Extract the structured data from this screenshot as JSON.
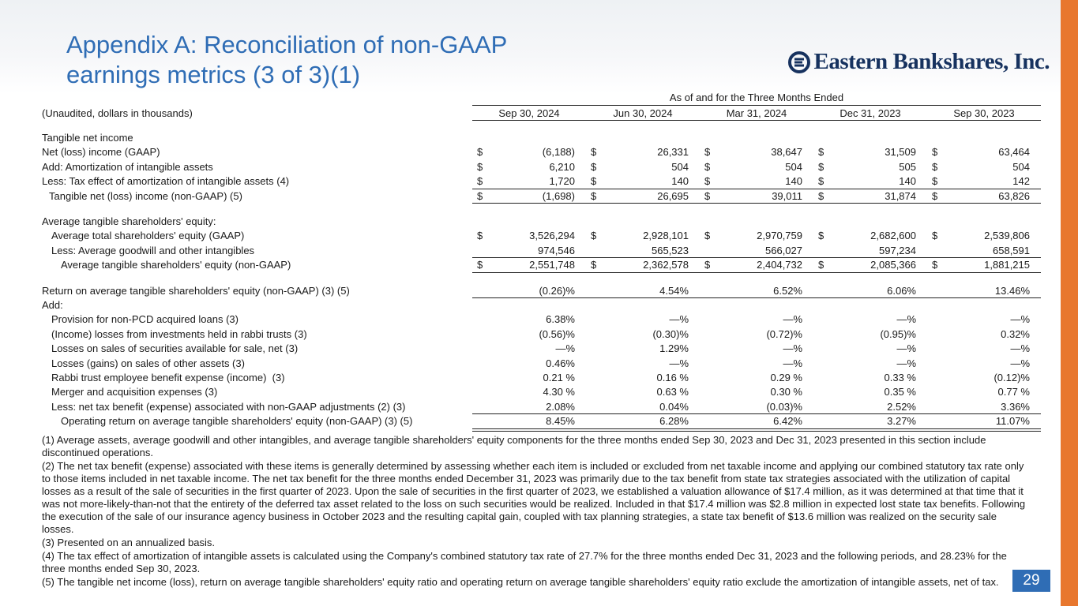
{
  "title": [
    "Appendix A: Reconciliation of non-GAAP",
    "earnings metrics (3 of 3)(1)"
  ],
  "logo": "Eastern Bankshares, Inc.",
  "table": {
    "group_header": "As of and for the Three Months Ended",
    "stub_header": "(Unaudited, dollars in thousands)",
    "currency": "$",
    "columns": [
      "Sep 30, 2024",
      "Jun 30, 2024",
      "Mar 31, 2024",
      "Dec 31, 2023",
      "Sep 30, 2023"
    ],
    "sections": [
      [
        {
          "label": "Tangible net income",
          "cells": []
        },
        {
          "label": "Net (loss) income (GAAP)",
          "dollar": true,
          "cells": [
            "(6,188)",
            "26,331",
            "38,647",
            "31,509",
            "63,464"
          ]
        },
        {
          "label": "Add: Amortization of intangible assets",
          "dollar": true,
          "cells": [
            "6,210",
            "504",
            "504",
            "505",
            "504"
          ]
        },
        {
          "label": "Less: Tax effect of amortization of intangible assets (4)",
          "dollar": true,
          "cells": [
            "1,720",
            "140",
            "140",
            "140",
            "142"
          ]
        },
        {
          "label": "Tangible net (loss) income (non-GAAP) (5)",
          "dollar": true,
          "cells": [
            "(1,698)",
            "26,695",
            "39,011",
            "31,874",
            "63,826"
          ]
        }
      ],
      [
        {
          "label": "Average tangible shareholders' equity:",
          "cells": []
        },
        {
          "label": "Average total shareholders' equity (GAAP)",
          "dollar": true,
          "cells": [
            "3,526,294",
            "2,928,101",
            "2,970,759",
            "2,682,600",
            "2,539,806"
          ]
        },
        {
          "label": "Less: Average goodwill and other intangibles",
          "cells": [
            "974,546",
            "565,523",
            "566,027",
            "597,234",
            "658,591"
          ]
        },
        {
          "label": "Average tangible shareholders' equity (non-GAAP)",
          "dollar": true,
          "cells": [
            "2,551,748",
            "2,362,578",
            "2,404,732",
            "2,085,366",
            "1,881,215"
          ]
        }
      ],
      [
        {
          "label": "Return on average tangible shareholders' equity (non-GAAP) (3) (5)",
          "cells": [
            "(0.26)%",
            "4.54%",
            "6.52%",
            "6.06%",
            "13.46%"
          ]
        },
        {
          "label": "Add:",
          "cells": []
        },
        {
          "label": "Provision for non-PCD acquired loans (3)",
          "cells": [
            "6.38%",
            "—%",
            "—%",
            "—%",
            "—%"
          ]
        },
        {
          "label": "(Income) losses from investments held in rabbi trusts (3)",
          "cells": [
            "(0.56)%",
            "(0.30)%",
            "(0.72)%",
            "(0.95)%",
            "0.32%"
          ]
        },
        {
          "label": "Losses on sales of securities available for sale, net (3)",
          "cells": [
            "—%",
            "1.29%",
            "—%",
            "—%",
            "—%"
          ]
        },
        {
          "label": "Losses (gains) on sales of other assets (3)",
          "cells": [
            "0.46%",
            "—%",
            "—%",
            "—%",
            "—%"
          ]
        },
        {
          "label": "Rabbi trust employee benefit expense (income)  (3)",
          "cells": [
            "0.21 %",
            "0.16 %",
            "0.29 %",
            "0.33 %",
            "(0.12)%"
          ]
        },
        {
          "label": "Merger and acquisition expenses (3)",
          "cells": [
            "4.30 %",
            "0.63 %",
            "0.30 %",
            "0.35 %",
            "0.77 %"
          ]
        },
        {
          "label": "Less: net tax benefit (expense) associated with non-GAAP adjustments (2) (3)",
          "cells": [
            "2.08%",
            "0.04%",
            "(0.03)%",
            "2.52%",
            "3.36%"
          ]
        },
        {
          "label": "Operating return on average tangible shareholders' equity (non-GAAP) (3) (5)",
          "cells": [
            "8.45%",
            "6.28%",
            "6.42%",
            "3.27%",
            "11.07%"
          ]
        }
      ]
    ]
  },
  "footnotes": [
    "(1) Average assets, average goodwill and other intangibles, and average tangible shareholders' equity components for the three months ended Sep 30, 2023 and Dec 31, 2023 presented in this section include discontinued operations.",
    "(2) The net tax benefit (expense) associated with these items is generally determined by assessing whether each item is included or excluded from net taxable income and applying our combined statutory tax rate only to those items included in net taxable income. The net tax benefit for the three months ended December 31, 2023 was primarily due to the tax benefit from state tax strategies associated with the utilization of capital losses as a result of the sale of securities in the first quarter of 2023. Upon the sale of securities in the first quarter of 2023, we established a valuation allowance of $17.4 million, as it was determined at that time that it was not more-likely-than-not that the entirety of the deferred tax asset related to the loss on such securities would be realized. Included in that $17.4 million was $2.8 million in expected lost state tax benefits. Following the execution of the sale of our insurance agency business in October 2023 and the resulting capital gain, coupled with tax planning strategies, a state tax benefit of $13.6 million was realized on the security sale losses.",
    "(3) Presented on an annualized basis.",
    "(4) The tax effect of amortization of intangible assets is calculated using the Company's combined statutory tax rate of 27.7% for the three months ended Dec 31, 2023 and the following periods, and 28.23% for the three months ended Sep 30, 2023.",
    "(5) The tangible net income (loss), return on average tangible shareholders' equity ratio and operating return on average tangible shareholders' equity ratio exclude the amortization of intangible assets, net of tax."
  ],
  "page_number": "29"
}
